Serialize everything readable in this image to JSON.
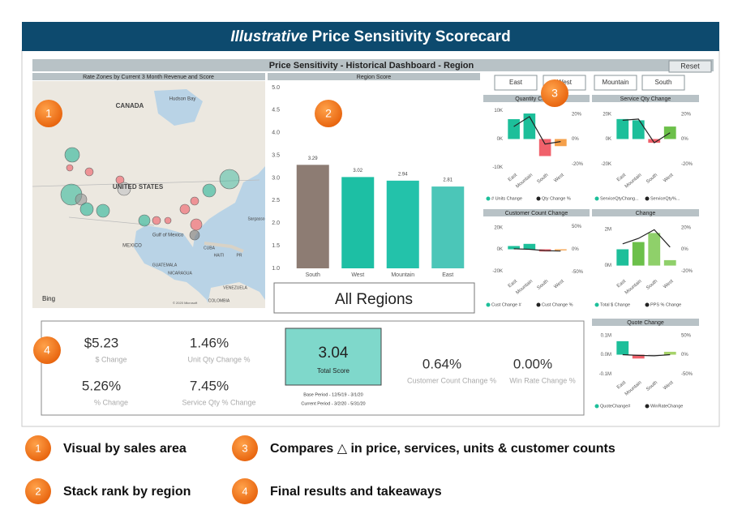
{
  "header": {
    "title_italic": "Illustrative",
    "title_rest": "Price Sensitivity Scorecard"
  },
  "dashboard": {
    "title": "Price Sensitivity - Historical Dashboard - Region",
    "reset": "Reset"
  },
  "map": {
    "title": "Rate Zones by Current 3 Month Revenue and Score",
    "labels": [
      "CANADA",
      "Hudson Bay",
      "UNITED STATES",
      "MEXICO",
      "Gulf of Mexico",
      "CUBA",
      "HAITI",
      "PR",
      "GUATEMALA",
      "NICARAGUA",
      "VENEZUELA",
      "COLOMBIA",
      "Sargasso"
    ],
    "bing": "Bing",
    "copyright": "© 2020 Microsoft"
  },
  "region_score": {
    "title": "Region Score",
    "categories": [
      "South",
      "West",
      "Mountain",
      "East"
    ],
    "values": [
      3.29,
      3.02,
      2.94,
      2.81
    ],
    "colors": [
      "#8d7c73",
      "#1dbfa4",
      "#23c2aa",
      "#4bc6b8"
    ],
    "ylim": [
      1.0,
      5.0
    ],
    "yticks": [
      {
        "value": 1,
        "label": "1.0"
      },
      1.5,
      {
        "value": 2,
        "label": "2.0"
      },
      2.5,
      {
        "value": 3,
        "label": "3.0"
      },
      3.5,
      {
        "value": 4,
        "label": "4.0"
      },
      4.5,
      {
        "value": 5,
        "label": "5.0"
      }
    ]
  },
  "all_regions": "All Regions",
  "filters": [
    "East",
    "West",
    "Mountain",
    "South"
  ],
  "mini_charts": [
    {
      "title": "Quantity Change",
      "categories": [
        "East",
        "Mountain",
        "South",
        "West"
      ],
      "bars": {
        "name": "# Units Change",
        "values": [
          7000,
          9000,
          -6000,
          -2500
        ],
        "colors": [
          "#1dbf9a",
          "#1dbf9a",
          "#f0616b",
          "#f5a04a"
        ]
      },
      "line": {
        "name": "Qty Change %",
        "values": [
          10,
          18,
          -4,
          -2
        ]
      },
      "ylim": [
        -11000,
        11000
      ],
      "yticks": [
        {
          "value": 10000,
          "label": "10K"
        },
        {
          "value": 0,
          "label": "0K"
        },
        {
          "value": -10000,
          "label": "-10K"
        }
      ],
      "y2lim": [
        -25,
        25
      ],
      "y2ticks": [
        {
          "value": 20,
          "label": "20%"
        },
        {
          "value": 0,
          "label": "0%"
        },
        {
          "value": -20,
          "label": "-20%"
        }
      ]
    },
    {
      "title": "Service Qty Change",
      "categories": [
        "East",
        "Mountain",
        "South",
        "West"
      ],
      "bars": {
        "name": "ServiceQtyChang...",
        "values": [
          16000,
          15000,
          -3000,
          10000
        ],
        "colors": [
          "#1dbf9a",
          "#1dbf9a",
          "#f0616b",
          "#6cc04a"
        ]
      },
      "line": {
        "name": "ServiceQty%...",
        "values": [
          15,
          16,
          -3,
          5
        ]
      },
      "ylim": [
        -25000,
        25000
      ],
      "yticks": [
        {
          "value": 20000,
          "label": "20K"
        },
        {
          "value": 0,
          "label": "0K"
        },
        {
          "value": -20000,
          "label": "-20K"
        }
      ],
      "y2lim": [
        -25,
        25
      ],
      "y2ticks": [
        {
          "value": 20,
          "label": "20%"
        },
        {
          "value": 0,
          "label": "0%"
        },
        {
          "value": -20,
          "label": "-20%"
        }
      ]
    },
    {
      "title": "Customer Count Change",
      "categories": [
        "East",
        "Mountain",
        "South",
        "West"
      ],
      "bars": {
        "name": "Cust Change #",
        "values": [
          3000,
          5000,
          -2000,
          -1000
        ],
        "colors": [
          "#1dbf9a",
          "#1dbf9a",
          "#f0616b",
          "#f5a04a"
        ]
      },
      "line": {
        "name": "Cust Change %",
        "values": [
          1,
          0,
          -3,
          -4
        ]
      },
      "ylim": [
        -25000,
        25000
      ],
      "yticks": [
        {
          "value": 20000,
          "label": "20K"
        },
        {
          "value": 0,
          "label": "0K"
        },
        {
          "value": -20000,
          "label": "-20K"
        }
      ],
      "y2lim": [
        -60,
        60
      ],
      "y2ticks": [
        {
          "value": 50,
          "label": "50%"
        },
        {
          "value": 0,
          "label": "0%"
        },
        {
          "value": -50,
          "label": "-50%"
        }
      ]
    },
    {
      "title": "Change",
      "categories": [
        "East",
        "Mountain",
        "South",
        "West"
      ],
      "bars": {
        "name": "Total $ Change",
        "values": [
          900000,
          1300000,
          1800000,
          300000
        ],
        "colors": [
          "#1dbf9a",
          "#6cc04a",
          "#8fd06a",
          "#8fd06a"
        ]
      },
      "line": {
        "name": "PPS % Change",
        "values": [
          5,
          10,
          18,
          2
        ]
      },
      "ylim": [
        -600000,
        2400000
      ],
      "yticks": [
        {
          "value": 2000000,
          "label": "2M"
        },
        {
          "value": 0,
          "label": "0M"
        }
      ],
      "y2lim": [
        -25,
        25
      ],
      "y2ticks": [
        {
          "value": 20,
          "label": "20%"
        },
        {
          "value": 0,
          "label": "0%"
        },
        {
          "value": -20,
          "label": "-20%"
        }
      ]
    },
    {
      "title": "Quote Change",
      "categories": [
        "East",
        "Mountain",
        "South",
        "West"
      ],
      "bars": {
        "name": "QuoteChange#",
        "values": [
          70000,
          -20000,
          -5000,
          15000
        ],
        "colors": [
          "#1dbf9a",
          "#f0616b",
          "#c9c9c9",
          "#a6d36a"
        ]
      },
      "line": {
        "name": "WinRateChange",
        "values": [
          0,
          -2,
          -3,
          0
        ]
      },
      "ylim": [
        -120000,
        120000
      ],
      "yticks": [
        {
          "value": 100000,
          "label": "0.1M"
        },
        {
          "value": 0,
          "label": "0.0M"
        },
        {
          "value": -100000,
          "label": "-0.1M"
        }
      ],
      "y2lim": [
        -60,
        60
      ],
      "y2ticks": [
        {
          "value": 50,
          "label": "50%"
        },
        {
          "value": 0,
          "label": "0%"
        },
        {
          "value": -50,
          "label": "-50%"
        }
      ]
    }
  ],
  "kpis": [
    {
      "value": "$5.23",
      "label": "$ Change"
    },
    {
      "value": "1.46%",
      "label": "Unit Qty Change %"
    },
    {
      "value": "5.26%",
      "label": "% Change"
    },
    {
      "value": "7.45%",
      "label": "Service Qty % Change"
    },
    {
      "value": "0.64%",
      "label": "Customer Count Change %"
    },
    {
      "value": "0.00%",
      "label": "Win Rate Change %"
    }
  ],
  "total_score": {
    "value": "3.04",
    "label": "Total Score",
    "base_period": "Base Period - 12/5/19 - 3/1/20",
    "current_period": "Current Period - 3/2/20 - 5/31/20"
  },
  "badges": [
    "1",
    "2",
    "3",
    "4"
  ],
  "legend": [
    {
      "number": "1",
      "text": "Visual by sales area"
    },
    {
      "number": "2",
      "text": "Stack rank by region"
    },
    {
      "number": "3",
      "text": "Compares △ in price, services, units & customer counts"
    },
    {
      "number": "4",
      "text": "Final results and takeaways"
    }
  ]
}
